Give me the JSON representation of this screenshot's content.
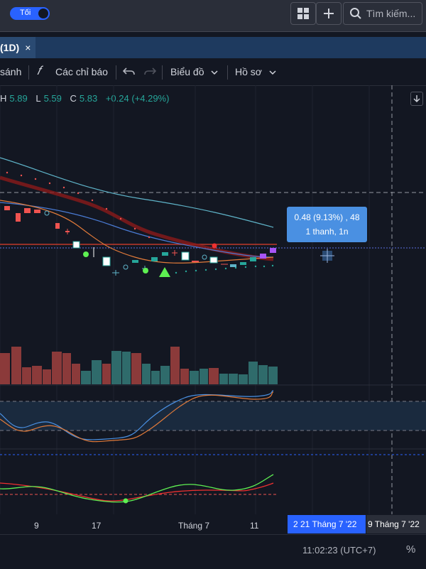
{
  "theme_toggle": {
    "label": "Tối"
  },
  "search": {
    "placeholder": "Tìm kiếm..."
  },
  "tab": {
    "title": "(1D)",
    "close": "×"
  },
  "toolbar": {
    "compare_label": "sánh",
    "indicators_label": "Các chỉ báo",
    "chart_label": "Biểu đồ",
    "profile_label": "Hồ sơ"
  },
  "ohlc": {
    "h_label": "H",
    "h_value": "5.89",
    "l_label": "L",
    "l_value": "5.59",
    "c_label": "C",
    "c_value": "5.83",
    "change": "+0.24 (+4.29%)"
  },
  "tooltip": {
    "line1": "0.48 (9.13%) , 48",
    "line2": "1 thanh, 1n"
  },
  "time_axis": {
    "ticks": [
      "9",
      "17",
      "Tháng 7",
      "11"
    ],
    "highlight_start": "2  21 Tháng 7 '22",
    "highlight_end": "9 Tháng 7 '22"
  },
  "footer": {
    "clock": "11:02:23 (UTC+7)",
    "percent": "%"
  },
  "colors": {
    "up": "#26a69a",
    "down": "#ef5350",
    "accent": "#2962ff"
  }
}
